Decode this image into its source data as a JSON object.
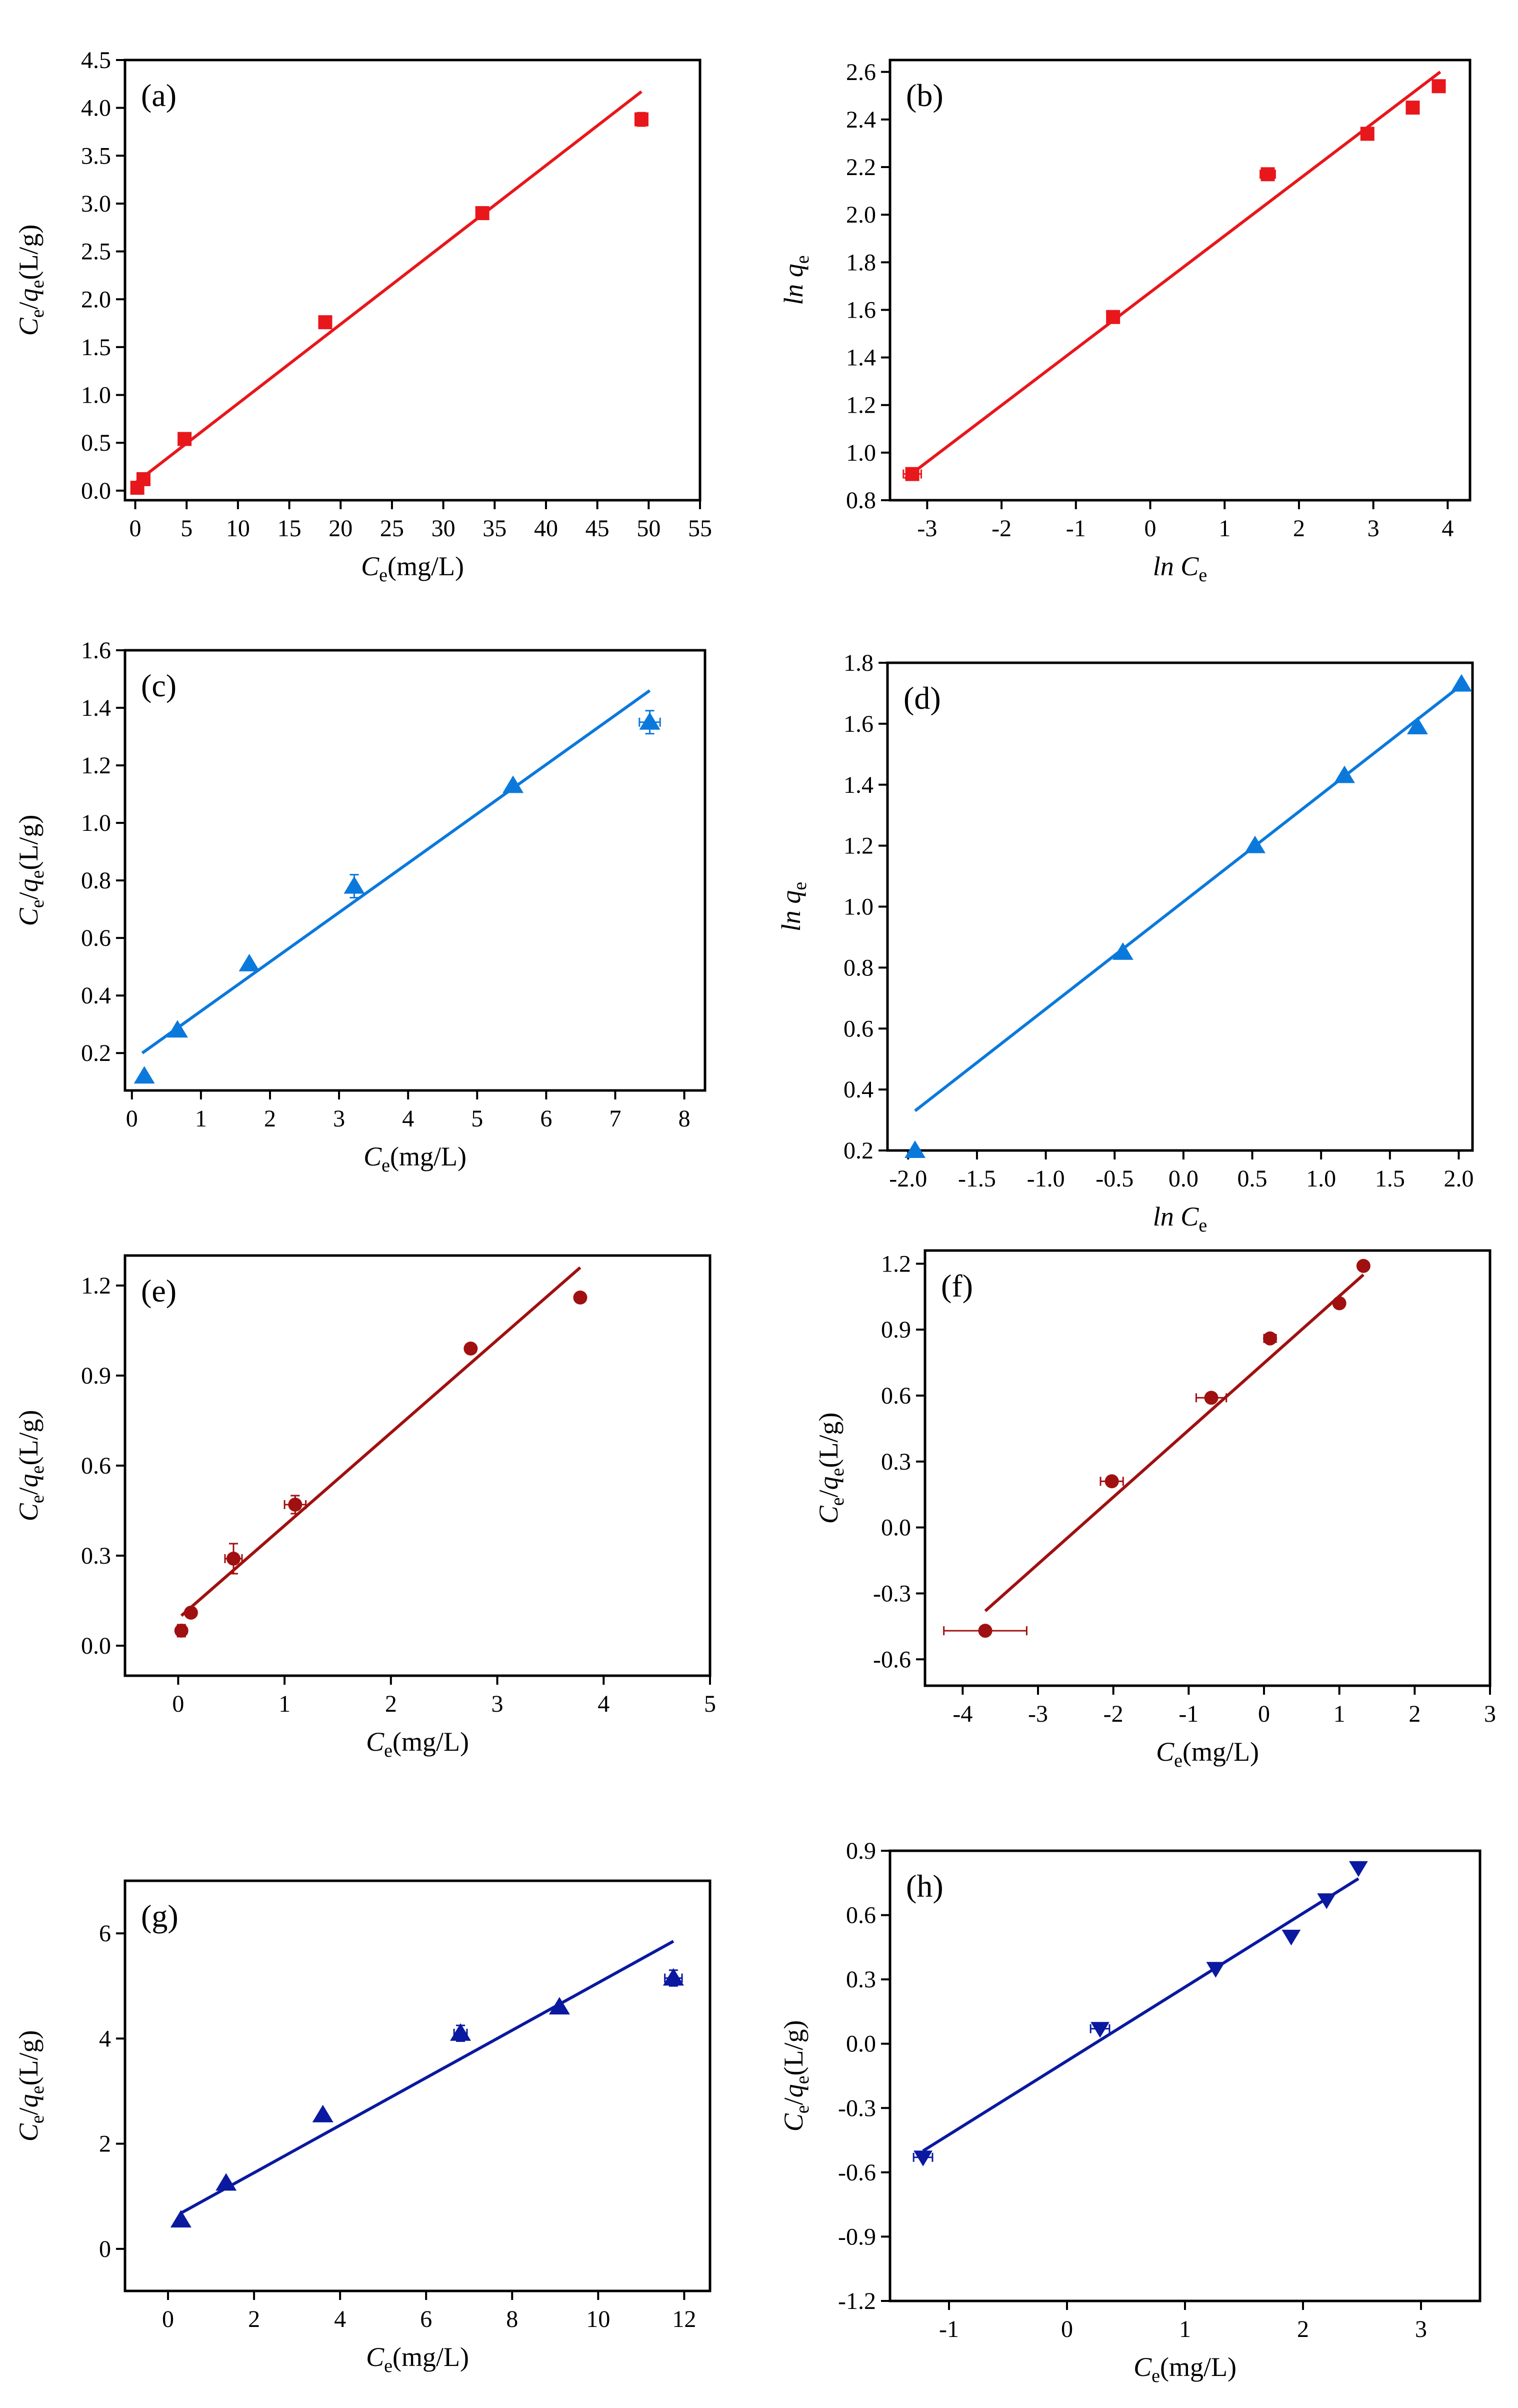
{
  "figure_title": "",
  "chart_data": [
    {
      "id": "a",
      "type": "scatter",
      "panel_label": "(a)",
      "color": "#e8171b",
      "marker": "square",
      "xlabel": {
        "main": "C",
        "sub": "e",
        "unit": "(mg/L)"
      },
      "ylabel": {
        "main": "C",
        "sub": "e",
        "slash": "/",
        "main2": "q",
        "sub2": "e",
        "unit": "(L/g)"
      },
      "xlim": [
        -1,
        55
      ],
      "ylim": [
        -0.1,
        4.5
      ],
      "xticks": [
        0,
        5,
        10,
        15,
        20,
        25,
        30,
        35,
        40,
        45,
        50,
        55
      ],
      "xtick_labels": [
        "0",
        "5",
        "10",
        "15",
        "20",
        "25",
        "30",
        "35",
        "40",
        "45",
        "50",
        "55"
      ],
      "yticks": [
        0.0,
        0.5,
        1.0,
        1.5,
        2.0,
        2.5,
        3.0,
        3.5,
        4.0,
        4.5
      ],
      "ytick_labels": [
        "0.0",
        "0.5",
        "1.0",
        "1.5",
        "2.0",
        "2.5",
        "3.0",
        "3.5",
        "4.0",
        "4.5"
      ],
      "points": [
        {
          "x": 0.2,
          "y": 0.03
        },
        {
          "x": 0.8,
          "y": 0.12
        },
        {
          "x": 4.8,
          "y": 0.54
        },
        {
          "x": 18.5,
          "y": 1.76
        },
        {
          "x": 33.8,
          "y": 2.9
        },
        {
          "x": 49.3,
          "y": 3.88,
          "ey": 0.07
        }
      ],
      "fit": [
        [
          0.0,
          0.08
        ],
        [
          49.3,
          4.17
        ]
      ]
    },
    {
      "id": "b",
      "type": "scatter",
      "panel_label": "(b)",
      "color": "#e8171b",
      "marker": "square",
      "xlabel": {
        "main": "ln C",
        "sub": "e",
        "unit": ""
      },
      "ylabel": {
        "main": "ln q",
        "sub": "e",
        "unit": ""
      },
      "xlim": [
        -3.5,
        4.3
      ],
      "ylim": [
        0.8,
        2.65
      ],
      "xticks": [
        -3,
        -2,
        -1,
        0,
        1,
        2,
        3,
        4
      ],
      "xtick_labels": [
        "-3",
        "-2",
        "-1",
        "0",
        "1",
        "2",
        "3",
        "4"
      ],
      "yticks": [
        0.8,
        1.0,
        1.2,
        1.4,
        1.6,
        1.8,
        2.0,
        2.2,
        2.4,
        2.6
      ],
      "ytick_labels": [
        "0.8",
        "1.0",
        "1.2",
        "1.4",
        "1.6",
        "1.8",
        "2.0",
        "2.2",
        "2.4",
        "2.6"
      ],
      "points": [
        {
          "x": -3.2,
          "y": 0.91,
          "ex": 0.12
        },
        {
          "x": -0.5,
          "y": 1.57
        },
        {
          "x": 1.58,
          "y": 2.17,
          "ex": 0.1
        },
        {
          "x": 2.92,
          "y": 2.34
        },
        {
          "x": 3.53,
          "y": 2.45
        },
        {
          "x": 3.88,
          "y": 2.54
        }
      ],
      "fit": [
        [
          -3.3,
          0.89
        ],
        [
          3.9,
          2.6
        ]
      ]
    },
    {
      "id": "c",
      "type": "scatter",
      "panel_label": "(c)",
      "color": "#0b79dc",
      "marker": "triangle",
      "xlabel": {
        "main": "C",
        "sub": "e",
        "unit": "(mg/L)"
      },
      "ylabel": {
        "main": "C",
        "sub": "e",
        "slash": "/",
        "main2": "q",
        "sub2": "e",
        "unit": "(L/g)"
      },
      "xlim": [
        -0.1,
        8.3
      ],
      "ylim": [
        0.07,
        1.6
      ],
      "xticks": [
        0,
        1,
        2,
        3,
        4,
        5,
        6,
        7,
        8
      ],
      "xtick_labels": [
        "0",
        "1",
        "2",
        "3",
        "4",
        "5",
        "6",
        "7",
        "8"
      ],
      "yticks": [
        0.2,
        0.4,
        0.6,
        0.8,
        1.0,
        1.2,
        1.4,
        1.6
      ],
      "ytick_labels": [
        "0.2",
        "0.4",
        "0.6",
        "0.8",
        "1.0",
        "1.2",
        "1.4",
        "1.6"
      ],
      "points": [
        {
          "x": 0.18,
          "y": 0.12
        },
        {
          "x": 0.66,
          "y": 0.28
        },
        {
          "x": 1.7,
          "y": 0.51
        },
        {
          "x": 3.22,
          "y": 0.78,
          "ey": 0.04
        },
        {
          "x": 5.52,
          "y": 1.13
        },
        {
          "x": 7.5,
          "y": 1.35,
          "ey": 0.04,
          "ex": 0.15
        }
      ],
      "fit": [
        [
          0.15,
          0.2
        ],
        [
          7.5,
          1.46
        ]
      ]
    },
    {
      "id": "d",
      "type": "scatter",
      "panel_label": "(d)",
      "color": "#0b79dc",
      "marker": "triangle",
      "xlabel": {
        "main": "ln C",
        "sub": "e",
        "unit": ""
      },
      "ylabel": {
        "main": "ln q",
        "sub": "e",
        "unit": ""
      },
      "xlim": [
        -2.15,
        2.1
      ],
      "ylim": [
        0.2,
        1.8
      ],
      "xticks": [
        -2.0,
        -1.5,
        -1.0,
        -0.5,
        0.0,
        0.5,
        1.0,
        1.5,
        2.0
      ],
      "xtick_labels": [
        "-2.0",
        "-1.5",
        "-1.0",
        "-0.5",
        "0.0",
        "0.5",
        "1.0",
        "1.5",
        "2.0"
      ],
      "yticks": [
        0.2,
        0.4,
        0.6,
        0.8,
        1.0,
        1.2,
        1.4,
        1.6,
        1.8
      ],
      "ytick_labels": [
        "0.2",
        "0.4",
        "0.6",
        "0.8",
        "1.0",
        "1.2",
        "1.4",
        "1.6",
        "1.8"
      ],
      "points": [
        {
          "x": -1.95,
          "y": 0.2
        },
        {
          "x": -0.44,
          "y": 0.85
        },
        {
          "x": 0.52,
          "y": 1.2
        },
        {
          "x": 1.17,
          "y": 1.43
        },
        {
          "x": 1.7,
          "y": 1.59
        },
        {
          "x": 2.02,
          "y": 1.73
        }
      ],
      "fit": [
        [
          -1.95,
          0.33
        ],
        [
          2.0,
          1.72
        ]
      ]
    },
    {
      "id": "e",
      "type": "scatter",
      "panel_label": "(e)",
      "color": "#a01010",
      "marker": "circle",
      "xlabel": {
        "main": "C",
        "sub": "e",
        "unit": "(mg/L)"
      },
      "ylabel": {
        "main": "C",
        "sub": "e",
        "slash": "/",
        "main2": "q",
        "sub2": "e",
        "unit": "(L/g)"
      },
      "xlim": [
        -0.5,
        5.0
      ],
      "ylim": [
        -0.1,
        1.3
      ],
      "xticks": [
        0,
        1,
        2,
        3,
        4,
        5
      ],
      "xtick_labels": [
        "0",
        "1",
        "2",
        "3",
        "4",
        "5"
      ],
      "yticks": [
        0.0,
        0.3,
        0.6,
        0.9,
        1.2
      ],
      "ytick_labels": [
        "0.0",
        "0.3",
        "0.6",
        "0.9",
        "1.2"
      ],
      "points": [
        {
          "x": 0.03,
          "y": 0.05,
          "ey": 0.02
        },
        {
          "x": 0.12,
          "y": 0.11
        },
        {
          "x": 0.52,
          "y": 0.29,
          "ey": 0.05,
          "ex": 0.08
        },
        {
          "x": 1.1,
          "y": 0.47,
          "ey": 0.03,
          "ex": 0.1
        },
        {
          "x": 2.75,
          "y": 0.99
        },
        {
          "x": 3.78,
          "y": 1.16
        }
      ],
      "fit": [
        [
          0.03,
          0.1
        ],
        [
          3.78,
          1.26
        ]
      ]
    },
    {
      "id": "f",
      "type": "scatter",
      "panel_label": "(f)",
      "color": "#a01010",
      "marker": "circle",
      "xlabel": {
        "main": "C",
        "sub": "e",
        "unit": "(mg/L)"
      },
      "ylabel": {
        "main": "C",
        "sub": "e",
        "slash": "/",
        "main2": "q",
        "sub2": "e",
        "unit": "(L/g)"
      },
      "xlim": [
        -4.5,
        3.0
      ],
      "ylim": [
        -0.72,
        1.26
      ],
      "xticks": [
        -4,
        -3,
        -2,
        -1,
        0,
        1,
        2,
        3
      ],
      "xtick_labels": [
        "-4",
        "-3",
        "-2",
        "-1",
        "0",
        "1",
        "2",
        "3"
      ],
      "yticks": [
        -0.6,
        -0.3,
        0.0,
        0.3,
        0.6,
        0.9,
        1.2
      ],
      "ytick_labels": [
        "-0.6",
        "-0.3",
        "0.0",
        "0.3",
        "0.6",
        "0.9",
        "1.2"
      ],
      "points": [
        {
          "x": -3.7,
          "y": -0.47,
          "ex": 0.55
        },
        {
          "x": -2.02,
          "y": 0.21,
          "ex": 0.15
        },
        {
          "x": -0.7,
          "y": 0.59,
          "ex": 0.2
        },
        {
          "x": 0.08,
          "y": 0.86,
          "ex": 0.08
        },
        {
          "x": 1.0,
          "y": 1.02
        },
        {
          "x": 1.32,
          "y": 1.19
        }
      ],
      "fit": [
        [
          -3.7,
          -0.38
        ],
        [
          1.32,
          1.15
        ]
      ]
    },
    {
      "id": "g",
      "type": "scatter",
      "panel_label": "(g)",
      "color": "#0a19a0",
      "marker": "triangle",
      "xlabel": {
        "main": "C",
        "sub": "e",
        "unit": "(mg/L)"
      },
      "ylabel": {
        "main": "C",
        "sub": "e",
        "slash": "/",
        "main2": "q",
        "sub2": "e",
        "unit": "(L/g)"
      },
      "xlim": [
        -1.0,
        12.6
      ],
      "ylim": [
        -0.8,
        7.0
      ],
      "xticks": [
        0,
        2,
        4,
        6,
        8,
        10,
        12
      ],
      "xtick_labels": [
        "0",
        "2",
        "4",
        "6",
        "8",
        "10",
        "12"
      ],
      "yticks": [
        0,
        2,
        4,
        6
      ],
      "ytick_labels": [
        "0",
        "2",
        "4",
        "6"
      ],
      "points": [
        {
          "x": 0.3,
          "y": 0.55
        },
        {
          "x": 1.35,
          "y": 1.25
        },
        {
          "x": 3.6,
          "y": 2.55
        },
        {
          "x": 6.8,
          "y": 4.1,
          "ey": 0.15,
          "ex": 0.15
        },
        {
          "x": 9.1,
          "y": 4.6
        },
        {
          "x": 11.75,
          "y": 5.15,
          "ey": 0.15,
          "ex": 0.2
        }
      ],
      "fit": [
        [
          0.3,
          0.68
        ],
        [
          11.75,
          5.85
        ]
      ]
    },
    {
      "id": "h",
      "type": "scatter",
      "panel_label": "(h)",
      "color": "#0a19a0",
      "marker": "triangle-down",
      "xlabel": {
        "main": "C",
        "sub": "e",
        "unit": "(mg/L)"
      },
      "ylabel": {
        "main": "C",
        "sub": "e",
        "slash": "/",
        "main2": "q",
        "sub2": "e",
        "unit": "(L/g)"
      },
      "xlim": [
        -1.5,
        3.5
      ],
      "ylim": [
        -1.2,
        0.9
      ],
      "xticks": [
        -1,
        0,
        1,
        2,
        3
      ],
      "xtick_labels": [
        "-1",
        "0",
        "1",
        "2",
        "3"
      ],
      "yticks": [
        -1.2,
        -0.9,
        -0.6,
        -0.3,
        0.0,
        0.3,
        0.6,
        0.9
      ],
      "ytick_labels": [
        "-1.2",
        "-0.9",
        "-0.6",
        "-0.3",
        "0.0",
        "0.3",
        "0.6",
        "0.9"
      ],
      "points": [
        {
          "x": -1.22,
          "y": -0.53,
          "ex": 0.08
        },
        {
          "x": 0.28,
          "y": 0.07,
          "ex": 0.08
        },
        {
          "x": 1.26,
          "y": 0.35
        },
        {
          "x": 1.9,
          "y": 0.5
        },
        {
          "x": 2.2,
          "y": 0.67
        },
        {
          "x": 2.47,
          "y": 0.82
        }
      ],
      "fit": [
        [
          -1.22,
          -0.5
        ],
        [
          2.47,
          0.77
        ]
      ]
    }
  ]
}
